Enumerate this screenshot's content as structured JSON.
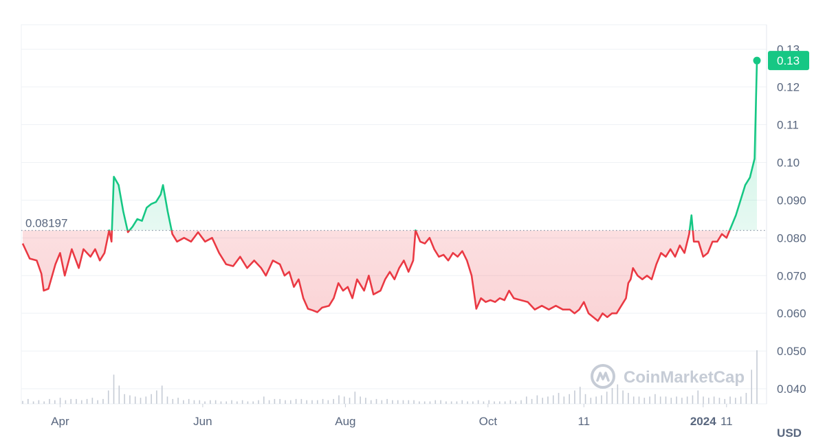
{
  "chart_data": {
    "type": "line",
    "currency_label": "USD",
    "watermark": "CoinMarketCap",
    "reference_line": {
      "value": 0.08197,
      "label": "0.08197"
    },
    "current_price": {
      "value": 0.127,
      "label": "0.13"
    },
    "ylim": [
      0.036,
      0.1365
    ],
    "y_ticks": [
      {
        "value": 0.13,
        "label": "0.13"
      },
      {
        "value": 0.12,
        "label": "0.12"
      },
      {
        "value": 0.11,
        "label": "0.11"
      },
      {
        "value": 0.1,
        "label": "0.10"
      },
      {
        "value": 0.09,
        "label": "0.090"
      },
      {
        "value": 0.08,
        "label": "0.080"
      },
      {
        "value": 0.07,
        "label": "0.070"
      },
      {
        "value": 0.06,
        "label": "0.060"
      },
      {
        "value": 0.05,
        "label": "0.050"
      },
      {
        "value": 0.04,
        "label": "0.040"
      }
    ],
    "x_range": [
      "2023-03-16",
      "2024-01-24"
    ],
    "x_ticks": [
      {
        "date": "2023-04-01",
        "label": "Apr",
        "bold": false
      },
      {
        "date": "2023-06-01",
        "label": "Jun",
        "bold": false
      },
      {
        "date": "2023-08-01",
        "label": "Aug",
        "bold": false
      },
      {
        "date": "2023-10-01",
        "label": "Oct",
        "bold": false
      },
      {
        "date": "2023-11-11",
        "label": "11",
        "bold": false
      },
      {
        "date": "2024-01-01",
        "label": "2024",
        "bold": true
      },
      {
        "date": "2024-01-11",
        "label": "11",
        "bold": false
      }
    ],
    "colors": {
      "above": "#16c784",
      "below": "#ea3943",
      "reference": "#8a93a5"
    },
    "series": [
      {
        "values": [
          [
            "2023-03-16",
            0.0785
          ],
          [
            "2023-03-19",
            0.0745
          ],
          [
            "2023-03-22",
            0.074
          ],
          [
            "2023-03-24",
            0.0705
          ],
          [
            "2023-03-25",
            0.066
          ],
          [
            "2023-03-27",
            0.0665
          ],
          [
            "2023-03-30",
            0.073
          ],
          [
            "2023-04-01",
            0.076
          ],
          [
            "2023-04-03",
            0.07
          ],
          [
            "2023-04-06",
            0.077
          ],
          [
            "2023-04-09",
            0.072
          ],
          [
            "2023-04-11",
            0.077
          ],
          [
            "2023-04-14",
            0.075
          ],
          [
            "2023-04-16",
            0.077
          ],
          [
            "2023-04-18",
            0.074
          ],
          [
            "2023-04-20",
            0.076
          ],
          [
            "2023-04-22",
            0.082
          ],
          [
            "2023-04-23",
            0.079
          ],
          [
            "2023-04-24",
            0.0962
          ],
          [
            "2023-04-26",
            0.094
          ],
          [
            "2023-04-28",
            0.087
          ],
          [
            "2023-04-30",
            0.0815
          ],
          [
            "2023-05-02",
            0.083
          ],
          [
            "2023-05-04",
            0.085
          ],
          [
            "2023-05-06",
            0.0845
          ],
          [
            "2023-05-08",
            0.088
          ],
          [
            "2023-05-10",
            0.089
          ],
          [
            "2023-05-12",
            0.0895
          ],
          [
            "2023-05-14",
            0.0915
          ],
          [
            "2023-05-15",
            0.094
          ],
          [
            "2023-05-17",
            0.087
          ],
          [
            "2023-05-19",
            0.081
          ],
          [
            "2023-05-21",
            0.079
          ],
          [
            "2023-05-24",
            0.08
          ],
          [
            "2023-05-27",
            0.079
          ],
          [
            "2023-05-30",
            0.0815
          ],
          [
            "2023-06-02",
            0.079
          ],
          [
            "2023-06-05",
            0.08
          ],
          [
            "2023-06-08",
            0.076
          ],
          [
            "2023-06-11",
            0.073
          ],
          [
            "2023-06-14",
            0.0725
          ],
          [
            "2023-06-17",
            0.075
          ],
          [
            "2023-06-20",
            0.072
          ],
          [
            "2023-06-23",
            0.074
          ],
          [
            "2023-06-26",
            0.072
          ],
          [
            "2023-06-28",
            0.07
          ],
          [
            "2023-07-01",
            0.074
          ],
          [
            "2023-07-04",
            0.073
          ],
          [
            "2023-07-06",
            0.07
          ],
          [
            "2023-07-08",
            0.071
          ],
          [
            "2023-07-10",
            0.067
          ],
          [
            "2023-07-12",
            0.069
          ],
          [
            "2023-07-14",
            0.064
          ],
          [
            "2023-07-16",
            0.0612
          ],
          [
            "2023-07-18",
            0.0608
          ],
          [
            "2023-07-20",
            0.0603
          ],
          [
            "2023-07-22",
            0.0615
          ],
          [
            "2023-07-25",
            0.062
          ],
          [
            "2023-07-27",
            0.064
          ],
          [
            "2023-07-29",
            0.068
          ],
          [
            "2023-07-31",
            0.066
          ],
          [
            "2023-08-02",
            0.067
          ],
          [
            "2023-08-04",
            0.064
          ],
          [
            "2023-08-06",
            0.069
          ],
          [
            "2023-08-09",
            0.066
          ],
          [
            "2023-08-11",
            0.07
          ],
          [
            "2023-08-13",
            0.065
          ],
          [
            "2023-08-16",
            0.066
          ],
          [
            "2023-08-18",
            0.069
          ],
          [
            "2023-08-20",
            0.071
          ],
          [
            "2023-08-22",
            0.069
          ],
          [
            "2023-08-24",
            0.072
          ],
          [
            "2023-08-26",
            0.074
          ],
          [
            "2023-08-28",
            0.071
          ],
          [
            "2023-08-30",
            0.074
          ],
          [
            "2023-08-31",
            0.082
          ],
          [
            "2023-09-02",
            0.079
          ],
          [
            "2023-09-04",
            0.0785
          ],
          [
            "2023-09-06",
            0.08
          ],
          [
            "2023-09-08",
            0.077
          ],
          [
            "2023-09-10",
            0.075
          ],
          [
            "2023-09-12",
            0.0755
          ],
          [
            "2023-09-14",
            0.074
          ],
          [
            "2023-09-16",
            0.076
          ],
          [
            "2023-09-18",
            0.075
          ],
          [
            "2023-09-20",
            0.0765
          ],
          [
            "2023-09-22",
            0.074
          ],
          [
            "2023-09-24",
            0.07
          ],
          [
            "2023-09-26",
            0.0612
          ],
          [
            "2023-09-28",
            0.064
          ],
          [
            "2023-09-30",
            0.063
          ],
          [
            "2023-10-02",
            0.0635
          ],
          [
            "2023-10-04",
            0.063
          ],
          [
            "2023-10-06",
            0.064
          ],
          [
            "2023-10-08",
            0.0635
          ],
          [
            "2023-10-10",
            0.066
          ],
          [
            "2023-10-12",
            0.064
          ],
          [
            "2023-10-15",
            0.0635
          ],
          [
            "2023-10-18",
            0.063
          ],
          [
            "2023-10-21",
            0.061
          ],
          [
            "2023-10-24",
            0.062
          ],
          [
            "2023-10-27",
            0.061
          ],
          [
            "2023-10-30",
            0.062
          ],
          [
            "2023-11-02",
            0.061
          ],
          [
            "2023-11-05",
            0.061
          ],
          [
            "2023-11-07",
            0.06
          ],
          [
            "2023-11-09",
            0.061
          ],
          [
            "2023-11-11",
            0.063
          ],
          [
            "2023-11-13",
            0.06
          ],
          [
            "2023-11-15",
            0.059
          ],
          [
            "2023-11-17",
            0.058
          ],
          [
            "2023-11-19",
            0.06
          ],
          [
            "2023-11-21",
            0.059
          ],
          [
            "2023-11-23",
            0.06
          ],
          [
            "2023-11-25",
            0.06
          ],
          [
            "2023-11-27",
            0.062
          ],
          [
            "2023-11-29",
            0.064
          ],
          [
            "2023-11-30",
            0.068
          ],
          [
            "2023-12-01",
            0.069
          ],
          [
            "2023-12-02",
            0.072
          ],
          [
            "2023-12-04",
            0.07
          ],
          [
            "2023-12-06",
            0.069
          ],
          [
            "2023-12-08",
            0.07
          ],
          [
            "2023-12-10",
            0.069
          ],
          [
            "2023-12-12",
            0.073
          ],
          [
            "2023-12-14",
            0.076
          ],
          [
            "2023-12-16",
            0.075
          ],
          [
            "2023-12-18",
            0.077
          ],
          [
            "2023-12-20",
            0.075
          ],
          [
            "2023-12-22",
            0.078
          ],
          [
            "2023-12-24",
            0.076
          ],
          [
            "2023-12-26",
            0.081
          ],
          [
            "2023-12-27",
            0.086
          ],
          [
            "2023-12-28",
            0.079
          ],
          [
            "2023-12-30",
            0.079
          ],
          [
            "2024-01-01",
            0.075
          ],
          [
            "2024-01-03",
            0.076
          ],
          [
            "2024-01-05",
            0.079
          ],
          [
            "2024-01-07",
            0.079
          ],
          [
            "2024-01-09",
            0.081
          ],
          [
            "2024-01-11",
            0.08
          ],
          [
            "2024-01-13",
            0.083
          ],
          [
            "2024-01-15",
            0.086
          ],
          [
            "2024-01-17",
            0.09
          ],
          [
            "2024-01-19",
            0.094
          ],
          [
            "2024-01-21",
            0.096
          ],
          [
            "2024-01-23",
            0.101
          ],
          [
            "2024-01-24",
            0.127
          ]
        ]
      }
    ],
    "volume": [
      0.12,
      0.2,
      0.1,
      0.15,
      0.1,
      0.2,
      0.15,
      0.25,
      0.15,
      0.2,
      0.2,
      0.15,
      0.2,
      0.25,
      0.15,
      0.2,
      0.55,
      1.2,
      0.75,
      0.4,
      0.35,
      0.3,
      0.25,
      0.3,
      0.4,
      0.55,
      0.75,
      0.3,
      0.2,
      0.25,
      0.15,
      0.2,
      0.15,
      0.15,
      0.1,
      0.15,
      0.15,
      0.1,
      0.1,
      0.15,
      0.1,
      0.15,
      0.1,
      0.1,
      0.15,
      0.3,
      0.15,
      0.2,
      0.2,
      0.15,
      0.15,
      0.2,
      0.2,
      0.15,
      0.15,
      0.15,
      0.2,
      0.15,
      0.2,
      0.35,
      0.3,
      0.25,
      0.5,
      0.3,
      0.25,
      0.15,
      0.2,
      0.15,
      0.2,
      0.15,
      0.15,
      0.15,
      0.15,
      0.15,
      0.1,
      0.1,
      0.1,
      0.15,
      0.15,
      0.1,
      0.1,
      0.1,
      0.15,
      0.1,
      0.1,
      0.15,
      0.1,
      0.15,
      0.1,
      0.1,
      0.1,
      0.15,
      0.1,
      0.15,
      0.3,
      0.2,
      0.35,
      0.25,
      0.3,
      0.35,
      0.45,
      0.3,
      0.4,
      0.55,
      0.7,
      0.4,
      0.25,
      0.3,
      0.35,
      0.5,
      0.65,
      0.8,
      0.55,
      0.45,
      0.3,
      0.3,
      0.25,
      0.3,
      0.4,
      0.3,
      0.3,
      0.25,
      0.3,
      0.25,
      0.3,
      0.35,
      0.55,
      0.3,
      0.25,
      0.3,
      0.25,
      0.2,
      0.3,
      0.25,
      0.3,
      0.45,
      1.4,
      2.2
    ]
  }
}
